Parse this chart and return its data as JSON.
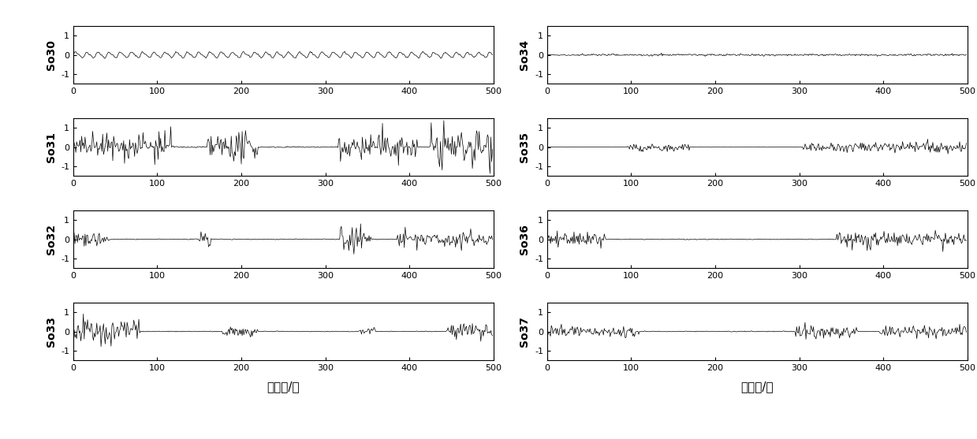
{
  "n_points": 500,
  "ylim": [
    -1.5,
    1.5
  ],
  "yticks": [
    -1,
    0,
    1
  ],
  "xticks": [
    0,
    100,
    200,
    300,
    400,
    500
  ],
  "xlabel": "采样点/个",
  "left_labels": [
    "So30",
    "So31",
    "So32",
    "So33"
  ],
  "right_labels": [
    "So34",
    "So35",
    "So36",
    "So37"
  ],
  "line_color": "#000000",
  "line_width": 0.5,
  "figure_width": 12.39,
  "figure_height": 5.57,
  "dpi": 100
}
